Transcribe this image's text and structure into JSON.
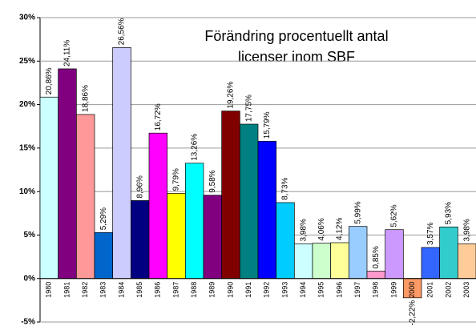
{
  "chart_data": {
    "type": "bar",
    "title": [
      "Förändring procentuellt antal",
      "licenser inom SBF"
    ],
    "categories": [
      "1980",
      "1981",
      "1982",
      "1983",
      "1984",
      "1985",
      "1986",
      "1987",
      "1988",
      "1989",
      "1990",
      "1991",
      "1992",
      "1993",
      "1994",
      "1995",
      "1996",
      "1997",
      "1998",
      "1999",
      "2000",
      "2001",
      "2002",
      "2003"
    ],
    "values": [
      20.86,
      24.11,
      18.86,
      5.29,
      26.56,
      8.96,
      16.72,
      9.79,
      13.26,
      9.58,
      19.26,
      17.75,
      15.79,
      8.73,
      3.98,
      4.06,
      4.12,
      5.99,
      0.85,
      5.62,
      -2.22,
      3.57,
      5.93,
      3.98
    ],
    "value_labels": [
      "20,86%",
      "24,11%",
      "18,86%",
      "5,29%",
      "26,56%",
      "8,96%",
      "16,72%",
      "9,79%",
      "13,26%",
      "9,58%",
      "19,26%",
      "17,75%",
      "15,79%",
      "8,73%",
      "3,98%",
      "4,06%",
      "4,12%",
      "5,99%",
      "0,85%",
      "5,62%",
      "-2,22%",
      "3,57%",
      "5,93%",
      "3,98%"
    ],
    "colors": [
      "#ccffff",
      "#800080",
      "#ff9999",
      "#0066cc",
      "#ccccff",
      "#000080",
      "#ff00ff",
      "#ffff00",
      "#00ffff",
      "#800080",
      "#800000",
      "#008080",
      "#0000ff",
      "#00ccff",
      "#ccffff",
      "#ccffcc",
      "#ffff99",
      "#99ccff",
      "#ff99cc",
      "#cc99ff",
      "#ff9966",
      "#3366ff",
      "#33cccc",
      "#ffcc99"
    ],
    "ylim": [
      -5,
      30
    ],
    "yticks": [
      {
        "value": -5,
        "label": "-5%"
      },
      {
        "value": 0,
        "label": "0%"
      },
      {
        "value": 5,
        "label": "5%"
      },
      {
        "value": 10,
        "label": "10%"
      },
      {
        "value": 15,
        "label": "15%"
      },
      {
        "value": 20,
        "label": "20%"
      },
      {
        "value": 25,
        "label": "25%"
      },
      {
        "value": 30,
        "label": "30%"
      }
    ],
    "grid": true
  }
}
